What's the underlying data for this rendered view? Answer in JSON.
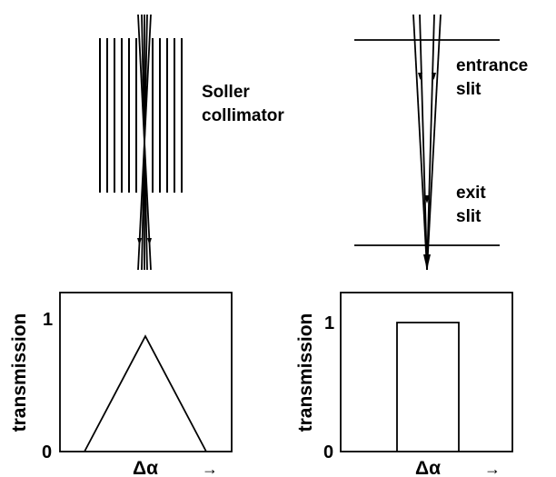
{
  "soller": {
    "label_line1": "Soller",
    "label_line2": "collimator"
  },
  "slits": {
    "entrance_line1": "entrance",
    "entrance_line2": "slit",
    "exit_line1": "exit",
    "exit_line2": "slit"
  },
  "plot_left": {
    "ylabel": "transmission",
    "xlabel": "Δα",
    "arrow": "→",
    "ytick_top": "1",
    "ytick_bottom": "0"
  },
  "plot_right": {
    "ylabel": "transmission",
    "xlabel": "Δα",
    "arrow": "→",
    "ytick_top": "1",
    "ytick_bottom": "0"
  }
}
